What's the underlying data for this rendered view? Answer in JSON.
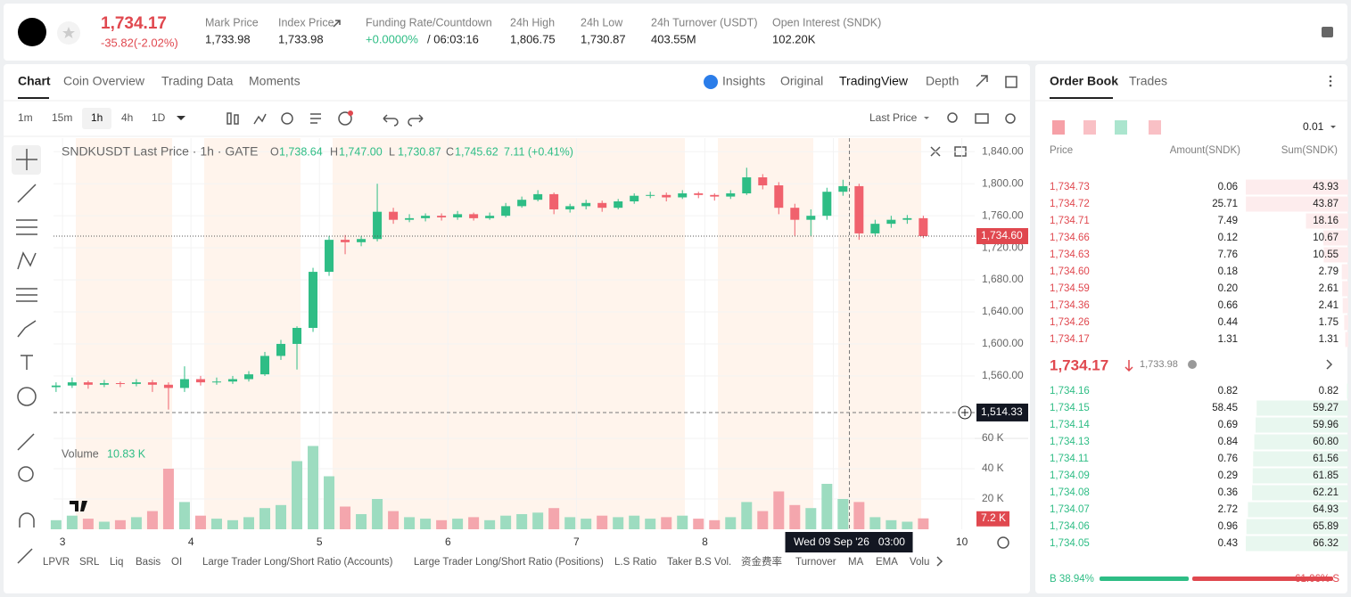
{
  "header": {
    "price": "1,734.17",
    "change": "-35.82(-2.02%)",
    "stats": [
      {
        "label": "Mark Price",
        "value": "1,733.98"
      },
      {
        "label": "Index Price",
        "value": "1,733.98"
      },
      {
        "label": "Funding Rate/Countdown",
        "value": "+0.0000%",
        "extra": "/ 06:03:16"
      },
      {
        "label": "24h High",
        "value": "1,806.75"
      },
      {
        "label": "24h Low",
        "value": "1,730.87"
      },
      {
        "label": "24h Turnover (USDT)",
        "value": "403.55M"
      },
      {
        "label": "Open Interest (SNDK)",
        "value": "102.20K"
      }
    ]
  },
  "chart_tabs": [
    "Chart",
    "Coin Overview",
    "Trading Data",
    "Moments"
  ],
  "view_tabs": [
    "Insights",
    "Original",
    "TradingView",
    "Depth"
  ],
  "intervals": [
    "1m",
    "15m",
    "1h",
    "4h",
    "1D"
  ],
  "price_source": "Last Price",
  "chart_data": {
    "type": "candlestick",
    "title": "SNDKUSDT Last Price · 1h · GATE",
    "ohlc_labels": [
      "O",
      "H",
      "L",
      "C"
    ],
    "ohlc_values": [
      "1,738.64",
      "1,747.00",
      "1,730.87",
      "1,745.62"
    ],
    "change": "7.11 (+0.41%)",
    "x": [
      2.95,
      3.075,
      3.2,
      3.325,
      3.45,
      3.575,
      3.7,
      3.825,
      3.95,
      4.075,
      4.2,
      4.325,
      4.45,
      4.575,
      4.7,
      4.825,
      4.95,
      5.075,
      5.2,
      5.325,
      5.45,
      5.575,
      5.7,
      5.825,
      5.95,
      6.075,
      6.2,
      6.325,
      6.45,
      6.575,
      6.7,
      6.825,
      6.95,
      7.075,
      7.2,
      7.325,
      7.45,
      7.575,
      7.7,
      7.825,
      7.95,
      8.075,
      8.2,
      8.325,
      8.45,
      8.575,
      8.7,
      8.825,
      8.95,
      9.075,
      9.2,
      9.325,
      9.45,
      9.575,
      9.7
    ],
    "candles": [
      [
        1546,
        1552,
        1540,
        1548
      ],
      [
        1548,
        1558,
        1545,
        1552
      ],
      [
        1552,
        1554,
        1544,
        1549
      ],
      [
        1549,
        1555,
        1546,
        1551
      ],
      [
        1551,
        1553,
        1546,
        1550
      ],
      [
        1550,
        1556,
        1547,
        1552
      ],
      [
        1552,
        1555,
        1540,
        1549
      ],
      [
        1549,
        1552,
        1518,
        1545
      ],
      [
        1545,
        1572,
        1540,
        1556
      ],
      [
        1556,
        1560,
        1548,
        1552
      ],
      [
        1552,
        1558,
        1549,
        1553
      ],
      [
        1553,
        1560,
        1550,
        1556
      ],
      [
        1556,
        1566,
        1553,
        1562
      ],
      [
        1562,
        1590,
        1560,
        1585
      ],
      [
        1585,
        1605,
        1580,
        1600
      ],
      [
        1600,
        1622,
        1568,
        1620
      ],
      [
        1620,
        1695,
        1615,
        1690
      ],
      [
        1690,
        1735,
        1685,
        1730
      ],
      [
        1730,
        1736,
        1712,
        1727
      ],
      [
        1727,
        1735,
        1722,
        1731
      ],
      [
        1731,
        1800,
        1728,
        1765
      ],
      [
        1765,
        1770,
        1750,
        1755
      ],
      [
        1755,
        1762,
        1752,
        1757
      ],
      [
        1757,
        1763,
        1753,
        1760
      ],
      [
        1760,
        1763,
        1754,
        1758
      ],
      [
        1758,
        1766,
        1755,
        1762
      ],
      [
        1762,
        1764,
        1754,
        1757
      ],
      [
        1757,
        1764,
        1755,
        1760
      ],
      [
        1760,
        1776,
        1758,
        1772
      ],
      [
        1772,
        1784,
        1770,
        1780
      ],
      [
        1780,
        1792,
        1778,
        1787
      ],
      [
        1787,
        1789,
        1762,
        1768
      ],
      [
        1768,
        1775,
        1764,
        1772
      ],
      [
        1772,
        1780,
        1768,
        1776
      ],
      [
        1776,
        1779,
        1765,
        1770
      ],
      [
        1770,
        1781,
        1768,
        1778
      ],
      [
        1778,
        1788,
        1775,
        1785
      ],
      [
        1785,
        1790,
        1782,
        1786
      ],
      [
        1786,
        1789,
        1778,
        1783
      ],
      [
        1783,
        1792,
        1781,
        1788
      ],
      [
        1788,
        1790,
        1782,
        1786
      ],
      [
        1786,
        1788,
        1779,
        1784
      ],
      [
        1784,
        1792,
        1781,
        1788
      ],
      [
        1788,
        1820,
        1786,
        1808
      ],
      [
        1808,
        1812,
        1793,
        1798
      ],
      [
        1798,
        1802,
        1762,
        1770
      ],
      [
        1770,
        1775,
        1735,
        1755
      ],
      [
        1755,
        1768,
        1735,
        1760
      ],
      [
        1760,
        1795,
        1755,
        1790
      ],
      [
        1790,
        1805,
        1785,
        1797
      ],
      [
        1797,
        1800,
        1730,
        1738
      ],
      [
        1738,
        1755,
        1735,
        1750
      ],
      [
        1750,
        1760,
        1745,
        1755
      ],
      [
        1755,
        1761,
        1750,
        1757
      ],
      [
        1757,
        1760,
        1732,
        1734.6
      ]
    ],
    "volume": {
      "name": "Volume",
      "current": "10.83 K",
      "values": [
        6000,
        9000,
        7000,
        5000,
        6000,
        8000,
        12000,
        40000,
        18000,
        9000,
        7000,
        6000,
        8000,
        14000,
        16000,
        45000,
        55000,
        35000,
        15000,
        10000,
        20000,
        12000,
        8000,
        7000,
        6000,
        7000,
        8000,
        6000,
        9000,
        10000,
        11000,
        14000,
        8000,
        7000,
        9000,
        8000,
        9000,
        7000,
        8000,
        9000,
        7000,
        6000,
        8000,
        18000,
        12000,
        25000,
        16000,
        14000,
        30000,
        20000,
        18000,
        8000,
        6000,
        5000,
        7200
      ]
    },
    "xlim": [
      2.93,
      10.1
    ],
    "xticks": [
      3,
      4,
      5,
      6,
      7,
      8,
      9,
      10
    ],
    "ylim": [
      1482,
      1857
    ],
    "yticks": [
      {
        "value": 1840,
        "label": "1,840.00"
      },
      {
        "value": 1800,
        "label": "1,800.00"
      },
      {
        "value": 1760,
        "label": "1,760.00"
      },
      {
        "value": 1720,
        "label": "1,720.00"
      },
      {
        "value": 1680,
        "label": "1,680.00"
      },
      {
        "value": 1640,
        "label": "1,640.00"
      },
      {
        "value": 1600,
        "label": "1,600.00"
      },
      {
        "value": 1560,
        "label": "1,560.00"
      }
    ],
    "y2lim": [
      0,
      60000
    ],
    "y2ticks": [
      {
        "value": 20000,
        "label": "20 K"
      },
      {
        "value": 40000,
        "label": "40 K"
      },
      {
        "value": 60000,
        "label": "60 K"
      }
    ],
    "colors": {
      "up": "#2ebd85",
      "down": "#f0616d",
      "up_volume": "#9ddcc0",
      "down_volume": "#f4a6ad"
    },
    "last_price": {
      "value": 1734.6,
      "label": "1,734.60"
    },
    "crosshair_price": {
      "value": 1514.33,
      "label": "1,514.33"
    },
    "crosshair_time": {
      "value": 9.125,
      "label": "Wed 09 Sep '26   03:00"
    },
    "volume_tag": {
      "value": 7200,
      "label": "7.2 K"
    }
  },
  "indicators": [
    "LPVR",
    "SRL",
    "Liq",
    "Basis",
    "OI",
    "Large Trader Long/Short Ratio (Accounts)",
    "Large Trader Long/Short Ratio (Positions)",
    "L.S Ratio",
    "Taker B.S Vol.",
    "资金费率",
    "Turnover",
    "MA",
    "EMA",
    "Volu"
  ],
  "orderbook": {
    "tabs": [
      "Order Book",
      "Trades"
    ],
    "precision": "0.01",
    "headers": [
      "Price",
      "Amount(SNDK)",
      "Sum(SNDK)"
    ],
    "asks": [
      [
        "1,734.73",
        "0.06",
        "43.93"
      ],
      [
        "1,734.72",
        "25.71",
        "43.87"
      ],
      [
        "1,734.71",
        "7.49",
        "18.16"
      ],
      [
        "1,734.66",
        "0.12",
        "10.67"
      ],
      [
        "1,734.63",
        "7.76",
        "10.55"
      ],
      [
        "1,734.60",
        "0.18",
        "2.79"
      ],
      [
        "1,734.59",
        "0.20",
        "2.61"
      ],
      [
        "1,734.36",
        "0.66",
        "2.41"
      ],
      [
        "1,734.26",
        "0.44",
        "1.75"
      ],
      [
        "1,734.17",
        "1.31",
        "1.31"
      ]
    ],
    "last": "1,734.17",
    "mark": "1,733.98",
    "bids": [
      [
        "1,734.16",
        "0.82",
        "0.82"
      ],
      [
        "1,734.15",
        "58.45",
        "59.27"
      ],
      [
        "1,734.14",
        "0.69",
        "59.96"
      ],
      [
        "1,734.13",
        "0.84",
        "60.80"
      ],
      [
        "1,734.11",
        "0.76",
        "61.56"
      ],
      [
        "1,734.09",
        "0.29",
        "61.85"
      ],
      [
        "1,734.08",
        "0.36",
        "62.21"
      ],
      [
        "1,734.07",
        "2.72",
        "64.93"
      ],
      [
        "1,734.06",
        "0.96",
        "65.89"
      ],
      [
        "1,734.05",
        "0.43",
        "66.32"
      ]
    ],
    "buy": {
      "value": 38.94,
      "label": "B 38.94%"
    },
    "sell": {
      "value": 61.06,
      "label": "61.06% S"
    }
  }
}
